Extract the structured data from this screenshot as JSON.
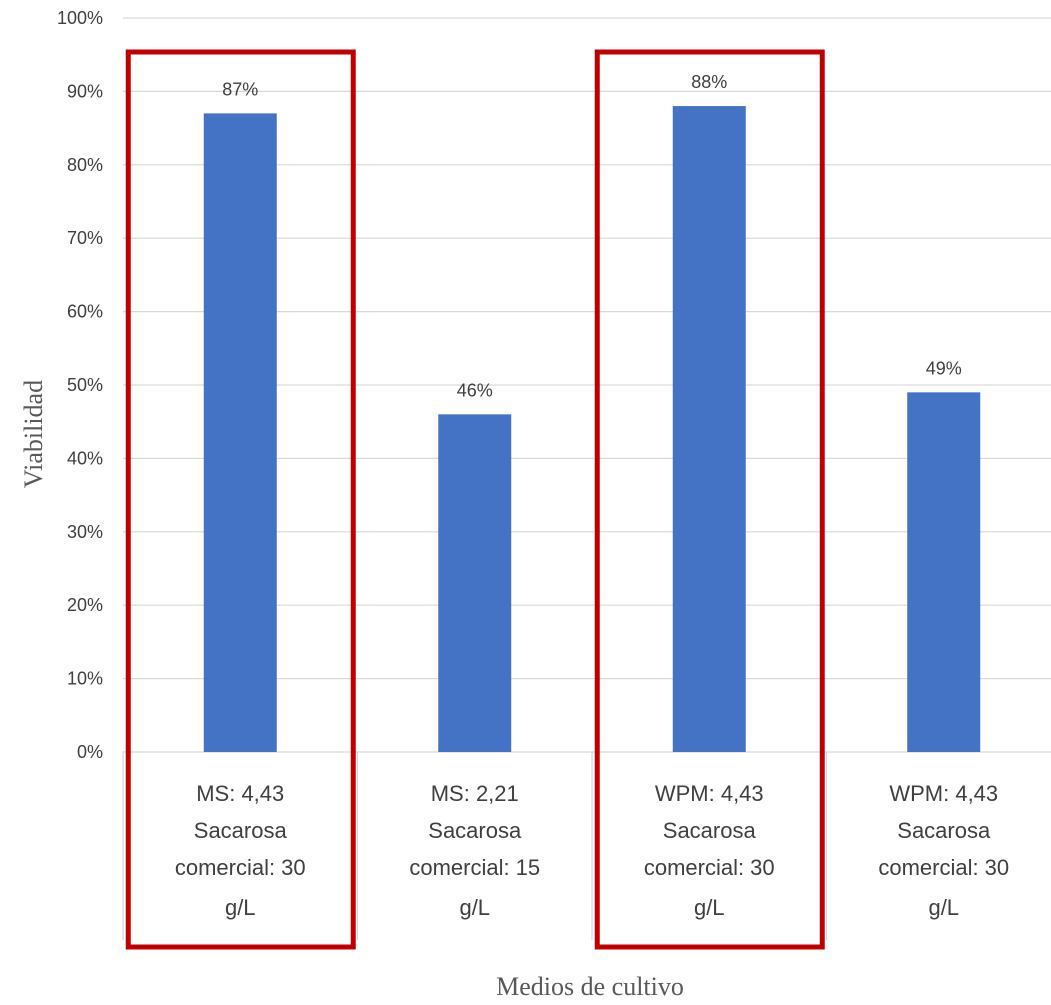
{
  "chart_data": {
    "type": "bar",
    "title": "",
    "xlabel": "Medios de cultivo",
    "ylabel": "Viabilidad",
    "ylim": [
      0,
      1
    ],
    "y_tick_labels": [
      "0%",
      "10%",
      "20%",
      "30%",
      "40%",
      "50%",
      "60%",
      "70%",
      "80%",
      "90%",
      "100%"
    ],
    "grid": true,
    "legend": "none",
    "categories": [
      {
        "lines": [
          "MS: 4,43",
          "Sacarosa",
          "comercial: 30"
        ],
        "unit": "g/L",
        "highlighted": true
      },
      {
        "lines": [
          "MS: 2,21",
          "Sacarosa",
          "comercial: 15"
        ],
        "unit": "g/L",
        "highlighted": false
      },
      {
        "lines": [
          "WPM: 4,43",
          "Sacarosa",
          "comercial: 30"
        ],
        "unit": "g/L",
        "highlighted": true
      },
      {
        "lines": [
          "WPM: 4,43",
          "Sacarosa",
          "comercial: 30"
        ],
        "unit": "g/L",
        "highlighted": false
      }
    ],
    "values": [
      0.87,
      0.46,
      0.88,
      0.49
    ],
    "data_labels": [
      "87%",
      "46%",
      "88%",
      "49%"
    ],
    "colors": {
      "bar": "#4472C4",
      "highlight": "#C00000",
      "grid": "#D9D9D9",
      "text": "#404040",
      "axis_title": "#595959"
    }
  }
}
